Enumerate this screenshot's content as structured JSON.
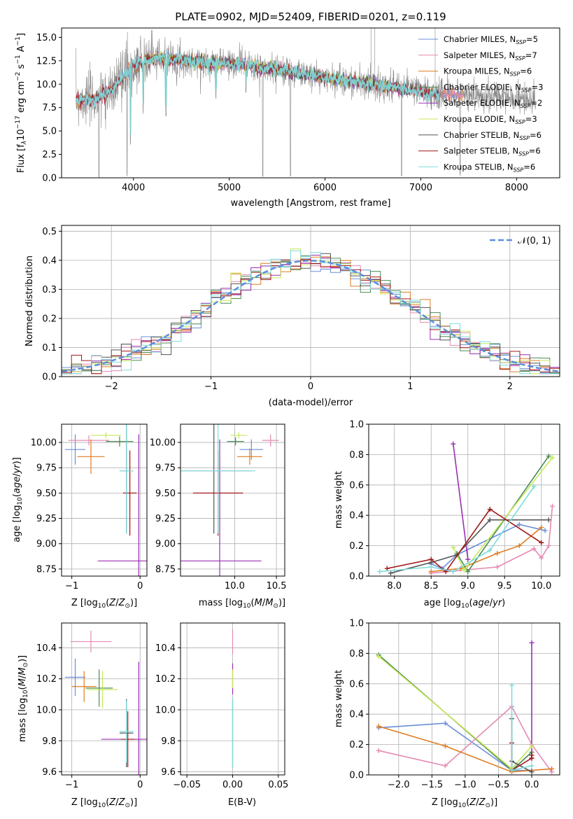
{
  "colors": {
    "chabrier_miles": "#6a8fd8",
    "salpeter_miles": "#e68ab3",
    "kroupa_miles": "#e07c22",
    "chabrier_elodie": "#4a8c56",
    "salpeter_elodie": "#9a30b4",
    "kroupa_elodie": "#c8e85a",
    "chabrier_stelib": "#555555",
    "salpeter_stelib": "#a01818",
    "kroupa_stelib": "#7fdcdc",
    "data_flux": "#888888",
    "normal_curve": "#5b8fd9"
  },
  "legend": {
    "spectrum": [
      {
        "key": "chabrier_miles",
        "label": "Chabrier MILES, N",
        "sub": "SSP",
        "eq": "=5"
      },
      {
        "key": "salpeter_miles",
        "label": "Salpeter MILES, N",
        "sub": "SSP",
        "eq": "=7"
      },
      {
        "key": "kroupa_miles",
        "label": "Kroupa MILES, N",
        "sub": "SSP",
        "eq": "=6"
      },
      {
        "key": "chabrier_elodie",
        "label": "Chabrier ELODIE, N",
        "sub": "SSP",
        "eq": "=3"
      },
      {
        "key": "salpeter_elodie",
        "label": "Salpeter ELODIE, N",
        "sub": "SSP",
        "eq": "=2"
      },
      {
        "key": "kroupa_elodie",
        "label": "Kroupa ELODIE, N",
        "sub": "SSP",
        "eq": "=3"
      },
      {
        "key": "chabrier_stelib",
        "label": "Chabrier STELIB, N",
        "sub": "SSP",
        "eq": "=6"
      },
      {
        "key": "salpeter_stelib",
        "label": "Salpeter STELIB, N",
        "sub": "SSP",
        "eq": "=6"
      },
      {
        "key": "kroupa_stelib",
        "label": "Kroupa STELIB, N",
        "sub": "SSP",
        "eq": "=6"
      }
    ],
    "normal": "𝒩(0, 1)"
  },
  "chart_data": [
    {
      "id": "spectrum",
      "type": "line",
      "title": "PLATE=0902, MJD=52409, FIBERID=0201, z=0.119",
      "xlabel": "wavelength [Angstrom, rest frame]",
      "ylabel": "Flux [f",
      "xlim": [
        3250,
        8450
      ],
      "ylim": [
        0,
        16
      ],
      "xticks": [
        "4000",
        "5000",
        "6000",
        "7000",
        "8000"
      ],
      "xtick_values": [
        4000,
        5000,
        6000,
        7000,
        8000
      ],
      "yticks": [
        "0.0",
        "2.5",
        "5.0",
        "7.5",
        "10.0",
        "12.5",
        "15.0"
      ],
      "ytick_values": [
        0,
        2.5,
        5,
        7.5,
        10,
        12.5,
        15
      ],
      "wavelength_range": [
        3400,
        8200
      ],
      "continuum_anchors": [
        [
          3400,
          8.4
        ],
        [
          3600,
          8.3
        ],
        [
          3800,
          9.6
        ],
        [
          4000,
          12.2
        ],
        [
          4300,
          12.8
        ],
        [
          4600,
          12.4
        ],
        [
          5000,
          12.2
        ],
        [
          5500,
          11.6
        ],
        [
          6000,
          10.7
        ],
        [
          6500,
          10.0
        ],
        [
          7000,
          9.2
        ],
        [
          7500,
          8.8
        ],
        [
          8000,
          8.4
        ],
        [
          8200,
          8.2
        ]
      ],
      "absorption_dips": [
        [
          3640,
          0
        ],
        [
          3934,
          0
        ],
        [
          3969,
          3.4
        ],
        [
          4102,
          6.8
        ],
        [
          4340,
          6.5
        ],
        [
          4861,
          8.3
        ],
        [
          5175,
          9.0
        ],
        [
          5350,
          0
        ],
        [
          5640,
          0
        ],
        [
          6563,
          9.5
        ],
        [
          6800,
          0
        ],
        [
          7410,
          0
        ]
      ]
    },
    {
      "id": "residual_histogram",
      "type": "area",
      "xlabel": "(data-model)/error",
      "ylabel": "Normed distribution",
      "xlim": [
        -2.5,
        2.5
      ],
      "ylim": [
        0,
        0.52
      ],
      "xticks": [
        "−2",
        "−1",
        "0",
        "1",
        "2"
      ],
      "xtick_values": [
        -2,
        -1,
        0,
        1,
        2
      ],
      "yticks": [
        "0.0",
        "0.1",
        "0.2",
        "0.3",
        "0.4",
        "0.5"
      ],
      "ytick_values": [
        0,
        0.1,
        0.2,
        0.3,
        0.4,
        0.5
      ],
      "bin_width": 0.1,
      "normal_curve": {
        "mean": 0,
        "sigma": 1
      }
    },
    {
      "id": "age_vs_Z",
      "type": "scatter",
      "xlabel": "Z [log",
      "ylabel": "age  [log",
      "xlim": [
        -1.15,
        0.1
      ],
      "ylim": [
        8.68,
        10.18
      ],
      "xticks": [
        "−1",
        "0"
      ],
      "xtick_values": [
        -1,
        0
      ],
      "yticks": [
        "8.75",
        "9.00",
        "9.25",
        "9.50",
        "9.75",
        "10.00"
      ],
      "ytick_values": [
        8.75,
        9.0,
        9.25,
        9.5,
        9.75,
        10.0
      ],
      "points": [
        {
          "key": "chabrier_miles",
          "x": -0.95,
          "xerr": 0.15,
          "y": 9.93,
          "yerr": 0.15
        },
        {
          "key": "salpeter_miles",
          "x": -0.75,
          "xerr": 0.3,
          "y": 10.02,
          "yerr": 0.05
        },
        {
          "key": "kroupa_miles",
          "x": -0.72,
          "xerr": 0.2,
          "y": 9.86,
          "yerr": 0.17
        },
        {
          "key": "chabrier_elodie",
          "x": -0.3,
          "xerr": 0.2,
          "y": 10.01,
          "yerr": 0.05
        },
        {
          "key": "salpeter_elodie",
          "x": -0.02,
          "xerr": 0.6,
          "y": 8.83,
          "yerr": 1.25
        },
        {
          "key": "kroupa_elodie",
          "x": -0.5,
          "xerr": 0.22,
          "y": 10.07,
          "yerr": 0.03
        },
        {
          "key": "chabrier_stelib",
          "x": -0.2,
          "xerr": 0.1,
          "y": 9.72,
          "yerr": 0.62
        },
        {
          "key": "salpeter_stelib",
          "x": -0.15,
          "xerr": 0.1,
          "y": 9.5,
          "yerr": 0.42
        },
        {
          "key": "kroupa_stelib",
          "x": -0.2,
          "xerr": 0.1,
          "y": 9.72,
          "yerr": 0.62
        }
      ]
    },
    {
      "id": "age_vs_mass",
      "type": "scatter",
      "xlabel": "mass [log",
      "ylabel": "",
      "xlim": [
        9.35,
        10.6
      ],
      "ylim": [
        8.68,
        10.18
      ],
      "xticks": [
        "10.0",
        "10.5"
      ],
      "xtick_values": [
        10.0,
        10.5
      ],
      "yticks": [
        "8.75",
        "9.00",
        "9.25",
        "9.50",
        "9.75",
        "10.00"
      ],
      "ytick_values": [
        8.75,
        9.0,
        9.25,
        9.5,
        9.75,
        10.0
      ],
      "points": [
        {
          "key": "chabrier_miles",
          "x": 10.2,
          "xerr": 0.14,
          "y": 9.93,
          "yerr": 0.1
        },
        {
          "key": "salpeter_miles",
          "x": 10.43,
          "xerr": 0.1,
          "y": 10.02,
          "yerr": 0.06
        },
        {
          "key": "kroupa_miles",
          "x": 10.18,
          "xerr": 0.15,
          "y": 9.86,
          "yerr": 0.08
        },
        {
          "key": "chabrier_elodie",
          "x": 10.01,
          "xerr": 0.1,
          "y": 10.01,
          "yerr": 0.04
        },
        {
          "key": "salpeter_elodie",
          "x": 9.82,
          "xerr": 0.5,
          "y": 8.83,
          "yerr": 1.2
        },
        {
          "key": "kroupa_elodie",
          "x": 10.05,
          "xerr": 0.1,
          "y": 10.07,
          "yerr": 0.03
        },
        {
          "key": "chabrier_stelib",
          "x": 9.75,
          "xerr": 0.45,
          "y": 9.72,
          "yerr": 0.62
        },
        {
          "key": "salpeter_stelib",
          "x": 9.8,
          "xerr": 0.3,
          "y": 9.5,
          "yerr": 0.42
        },
        {
          "key": "kroupa_stelib",
          "x": 9.8,
          "xerr": 0.45,
          "y": 9.72,
          "yerr": 0.62
        }
      ]
    },
    {
      "id": "weight_vs_age",
      "type": "line",
      "xlabel": "age  [log",
      "ylabel": "mass weight",
      "xlim": [
        7.65,
        10.25
      ],
      "ylim": [
        0,
        1
      ],
      "xticks": [
        "8.0",
        "8.5",
        "9.0",
        "9.5",
        "10.0"
      ],
      "xtick_values": [
        8.0,
        8.5,
        9.0,
        9.5,
        10.0
      ],
      "yticks": [
        "0.0",
        "0.2",
        "0.4",
        "0.6",
        "0.8",
        "1.0"
      ],
      "ytick_values": [
        0,
        0.2,
        0.4,
        0.6,
        0.8,
        1.0
      ],
      "series": [
        {
          "key": "chabrier_miles",
          "x": [
            8.5,
            8.65,
            8.85,
            9.7,
            10.05
          ],
          "y": [
            0.08,
            0.05,
            0.14,
            0.34,
            0.3
          ]
        },
        {
          "key": "salpeter_miles",
          "x": [
            8.5,
            9.4,
            9.9,
            10.0,
            10.1,
            10.15
          ],
          "y": [
            0.02,
            0.06,
            0.18,
            0.12,
            0.2,
            0.46
          ]
        },
        {
          "key": "kroupa_miles",
          "x": [
            8.5,
            8.9,
            9.4,
            9.7,
            10.0
          ],
          "y": [
            0.03,
            0.05,
            0.15,
            0.2,
            0.32
          ]
        },
        {
          "key": "chabrier_elodie",
          "x": [
            8.85,
            9.0,
            10.1
          ],
          "y": [
            0.15,
            0.03,
            0.79
          ]
        },
        {
          "key": "salpeter_elodie",
          "x": [
            8.8,
            9.0
          ],
          "y": [
            0.87,
            0.11
          ]
        },
        {
          "key": "kroupa_elodie",
          "x": [
            8.8,
            8.95,
            10.15
          ],
          "y": [
            0.19,
            0.04,
            0.78
          ]
        },
        {
          "key": "chabrier_stelib",
          "x": [
            7.95,
            8.5,
            8.85,
            9.3,
            10.1
          ],
          "y": [
            0.02,
            0.09,
            0.14,
            0.37,
            0.37
          ]
        },
        {
          "key": "salpeter_stelib",
          "x": [
            7.9,
            8.5,
            8.7,
            9.3,
            10.0
          ],
          "y": [
            0.05,
            0.11,
            0.03,
            0.44,
            0.22
          ]
        },
        {
          "key": "kroupa_stelib",
          "x": [
            7.8,
            8.5,
            8.8,
            9.3,
            9.9
          ],
          "y": [
            0.03,
            0.06,
            0.03,
            0.17,
            0.59
          ]
        }
      ]
    },
    {
      "id": "mass_vs_Z",
      "type": "scatter",
      "xlabel": "Z [log",
      "ylabel": "mass [log",
      "xlim": [
        -1.15,
        0.1
      ],
      "ylim": [
        9.58,
        10.56
      ],
      "xticks": [
        "−1",
        "0"
      ],
      "xtick_values": [
        -1,
        0
      ],
      "yticks": [
        "9.6",
        "9.8",
        "10.0",
        "10.2",
        "10.4"
      ],
      "ytick_values": [
        9.6,
        9.8,
        10.0,
        10.2,
        10.4
      ],
      "points": [
        {
          "key": "chabrier_miles",
          "x": -0.95,
          "xerr": 0.15,
          "y": 10.21,
          "yerr": 0.12
        },
        {
          "key": "salpeter_miles",
          "x": -0.72,
          "xerr": 0.3,
          "y": 10.44,
          "yerr": 0.07
        },
        {
          "key": "kroupa_miles",
          "x": -0.82,
          "xerr": 0.18,
          "y": 10.15,
          "yerr": 0.1
        },
        {
          "key": "chabrier_elodie",
          "x": -0.6,
          "xerr": 0.2,
          "y": 10.14,
          "yerr": 0.12
        },
        {
          "key": "salpeter_elodie",
          "x": -0.02,
          "xerr": 0.55,
          "y": 9.81,
          "yerr": 0.5
        },
        {
          "key": "kroupa_elodie",
          "x": -0.55,
          "xerr": 0.22,
          "y": 10.13,
          "yerr": 0.12
        },
        {
          "key": "chabrier_stelib",
          "x": -0.2,
          "xerr": 0.1,
          "y": 9.85,
          "yerr": 0.22
        },
        {
          "key": "salpeter_stelib",
          "x": -0.18,
          "xerr": 0.1,
          "y": 9.81,
          "yerr": 0.18
        },
        {
          "key": "kroupa_stelib",
          "x": -0.2,
          "xerr": 0.1,
          "y": 9.86,
          "yerr": 0.2
        }
      ]
    },
    {
      "id": "mass_vs_ebv",
      "type": "scatter",
      "xlabel": "E(B-V)",
      "ylabel": "",
      "xlim": [
        -0.057,
        0.057
      ],
      "ylim": [
        9.58,
        10.56
      ],
      "xticks": [
        "−0.05",
        "0.00",
        "0.05"
      ],
      "xtick_values": [
        -0.05,
        0.0,
        0.05
      ],
      "yticks": [
        "9.6",
        "9.8",
        "10.0",
        "10.2",
        "10.4"
      ],
      "ytick_values": [
        9.6,
        9.8,
        10.0,
        10.2,
        10.4
      ],
      "points": [
        {
          "key": "salpeter_miles",
          "x": 0.0,
          "xerr": 0,
          "y": 10.44,
          "yerr": 0.08
        },
        {
          "key": "salpeter_elodie",
          "x": 0.0,
          "xerr": 0,
          "y": 10.2,
          "yerr": 0.1
        },
        {
          "key": "kroupa_elodie",
          "x": 0.0,
          "xerr": 0,
          "y": 10.2,
          "yerr": 0.06
        },
        {
          "key": "chabrier_stelib",
          "x": 0.0,
          "xerr": 0,
          "y": 9.85,
          "yerr": 0.22
        },
        {
          "key": "kroupa_stelib",
          "x": 0.0,
          "xerr": 0,
          "y": 9.85,
          "yerr": 0.22
        }
      ]
    },
    {
      "id": "weight_vs_Z",
      "type": "line",
      "xlabel": "Z [log",
      "ylabel": "mass weight",
      "xlim": [
        -2.45,
        0.42
      ],
      "ylim": [
        0,
        1
      ],
      "xticks": [
        "−2.0",
        "−1.5",
        "−1.0",
        "−0.5",
        "0.0"
      ],
      "xtick_values": [
        -2.0,
        -1.5,
        -1.0,
        -0.5,
        0.0
      ],
      "yticks": [
        "0.0",
        "0.2",
        "0.4",
        "0.6",
        "0.8",
        "1.0"
      ],
      "ytick_values": [
        0,
        0.2,
        0.4,
        0.6,
        0.8,
        1.0
      ],
      "series": [
        {
          "key": "chabrier_miles",
          "x": [
            -2.3,
            -1.3,
            -0.3,
            0.0
          ],
          "y": [
            0.31,
            0.34,
            0.03,
            0.03
          ]
        },
        {
          "key": "salpeter_miles",
          "x": [
            -2.3,
            -1.3,
            -0.3,
            0.0,
            0.3
          ],
          "y": [
            0.16,
            0.06,
            0.45,
            0.2,
            0.02
          ]
        },
        {
          "key": "kroupa_miles",
          "x": [
            -2.3,
            -1.3,
            -0.3,
            0.3
          ],
          "y": [
            0.32,
            0.19,
            0.02,
            0.04
          ]
        },
        {
          "key": "chabrier_elodie",
          "x": [
            -2.3,
            -0.3,
            0.0
          ],
          "y": [
            0.79,
            0.03,
            0.15
          ]
        },
        {
          "key": "salpeter_elodie",
          "x": [
            0.0,
            0.0
          ],
          "y": [
            0.87,
            0.11
          ]
        },
        {
          "key": "kroupa_elodie",
          "x": [
            -2.3,
            -0.3,
            0.0
          ],
          "y": [
            0.78,
            0.04,
            0.19
          ]
        },
        {
          "key": "chabrier_stelib",
          "x": [
            -0.3,
            -0.3,
            0.0
          ],
          "y": [
            0.37,
            0.09,
            0.02
          ]
        },
        {
          "key": "salpeter_stelib",
          "x": [
            -0.3,
            -0.3,
            0.0,
            0.0
          ],
          "y": [
            0.21,
            0.03,
            0.11,
            0.13
          ]
        },
        {
          "key": "kroupa_stelib",
          "x": [
            -0.3,
            -0.3,
            0.0
          ],
          "y": [
            0.59,
            0.03,
            0.06
          ]
        }
      ]
    }
  ]
}
